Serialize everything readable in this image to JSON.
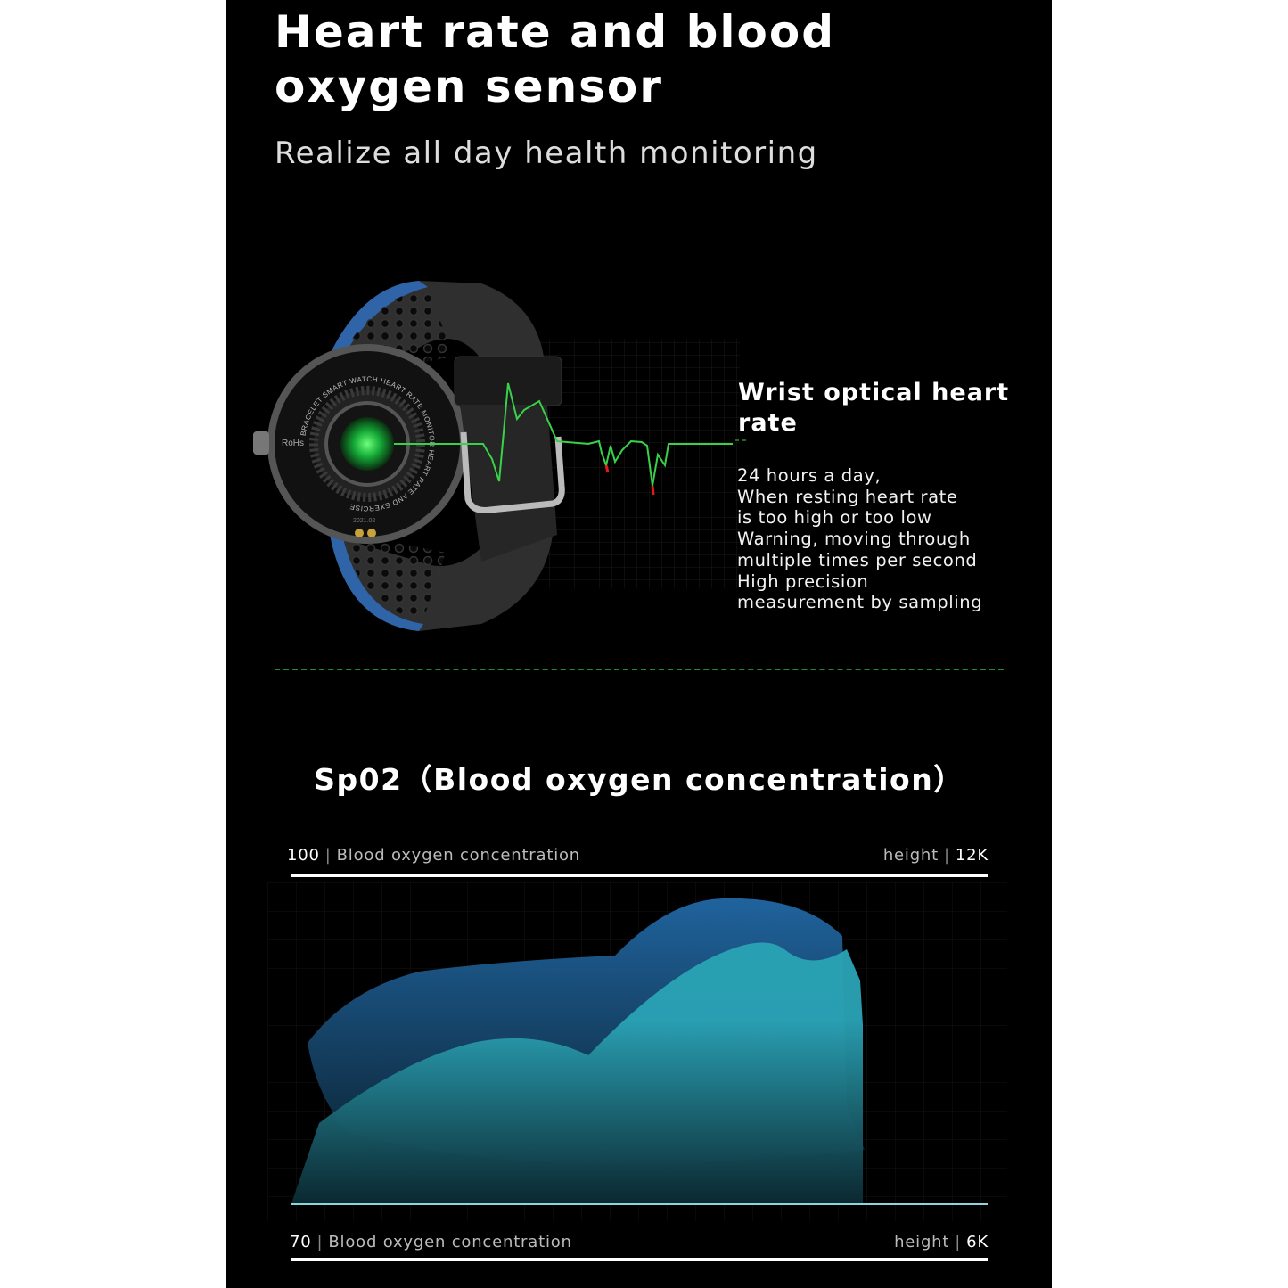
{
  "header": {
    "title_line1": "Heart rate and blood",
    "title_line2": "oxygen sensor",
    "subtitle": "Realize all day health monitoring"
  },
  "watch": {
    "case_text": "BRACELET SMART WATCH HEART RATE MONITOR HEART RATE AND EXERCISE",
    "rohs": "RoHs",
    "date_code": "2021.02",
    "strap_accent": "#2f64a8",
    "sensor_color": "#1fd14a",
    "ecg_color": "#3ad14a",
    "ecg_peak_color": "#e01b1b"
  },
  "feature": {
    "title": "Wrist optical heart rate",
    "lines": [
      "24 hours a day,",
      "When resting heart rate",
      "is too high or too low",
      "Warning, moving through",
      "multiple times per second",
      "High precision",
      "measurement by sampling"
    ]
  },
  "divider_color": "#1f8a2e",
  "spo2": {
    "heading": "Sp02（Blood oxygen concentration）",
    "top_value": "100",
    "top_label": "Blood oxygen concentration",
    "top_height_label": "height",
    "top_height_value": "12K",
    "bottom_value": "70",
    "bottom_label": "Blood oxygen concentration",
    "bottom_height_label": "height",
    "bottom_height_value": "6K",
    "back_area_color": "#1f5f95",
    "front_area_color": "#2aa3b5"
  }
}
